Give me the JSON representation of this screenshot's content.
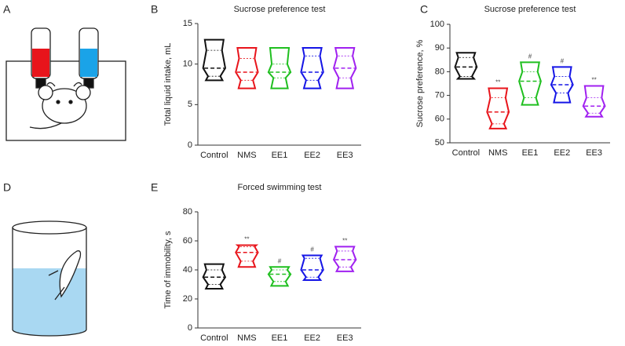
{
  "illustrations": [
    {
      "panel": "A"
    },
    {
      "panel": "D"
    }
  ],
  "chart_data": [
    {
      "panel": "B",
      "type": "violin",
      "title": "Sucrose preference test",
      "y_label": "Total liquid intake, mL",
      "categories": [
        "Control",
        "NMS",
        "EE1",
        "EE2",
        "EE3"
      ],
      "colors": [
        "#111111",
        "#e8141b",
        "#1fbf1f",
        "#1515e6",
        "#a020f0"
      ],
      "min": [
        8,
        7,
        7,
        7,
        7
      ],
      "q1": [
        8.5,
        8,
        8.3,
        8,
        8.3
      ],
      "median": [
        9.5,
        9,
        9,
        9,
        9.5
      ],
      "q3": [
        11.7,
        10.7,
        10,
        11,
        11
      ],
      "max": [
        13,
        12,
        12,
        12,
        12
      ],
      "ylim": [
        0,
        15
      ],
      "yticks": [
        0,
        5,
        10,
        15
      ]
    },
    {
      "panel": "C",
      "type": "violin",
      "title": "Sucrose preference test",
      "y_label": "Sucrose preference, %",
      "categories": [
        "Control",
        "NMS",
        "EE1",
        "EE2",
        "EE3"
      ],
      "colors": [
        "#111111",
        "#e8141b",
        "#1fbf1f",
        "#1515e6",
        "#a020f0"
      ],
      "min": [
        77,
        56,
        66,
        67,
        61
      ],
      "q1": [
        78,
        58,
        69,
        71,
        62.5
      ],
      "median": [
        82,
        63,
        76,
        74.5,
        65.5
      ],
      "q3": [
        86,
        69,
        80,
        78,
        69
      ],
      "max": [
        88,
        73,
        84,
        82,
        74
      ],
      "annotations": [
        null,
        "**",
        "#",
        "#",
        "**"
      ],
      "ylim": [
        50,
        100
      ],
      "yticks": [
        50,
        60,
        70,
        80,
        90,
        100
      ]
    },
    {
      "panel": "E",
      "type": "violin",
      "title": "Forced swimming test",
      "y_label": "Time of immobility, s",
      "categories": [
        "Control",
        "NMS",
        "EE1",
        "EE2",
        "EE3"
      ],
      "colors": [
        "#111111",
        "#e8141b",
        "#1fbf1f",
        "#1515e6",
        "#a020f0"
      ],
      "min": [
        27,
        42,
        29,
        33,
        39
      ],
      "q1": [
        30,
        46,
        32,
        35,
        42
      ],
      "median": [
        35,
        52,
        37,
        40,
        47
      ],
      "q3": [
        40,
        56,
        40,
        48,
        53
      ],
      "max": [
        44,
        57,
        42,
        50,
        56
      ],
      "annotations": [
        null,
        "**",
        "#",
        "#",
        "**"
      ],
      "ylim": [
        0,
        80
      ],
      "yticks": [
        0,
        20,
        40,
        60,
        80
      ]
    }
  ]
}
